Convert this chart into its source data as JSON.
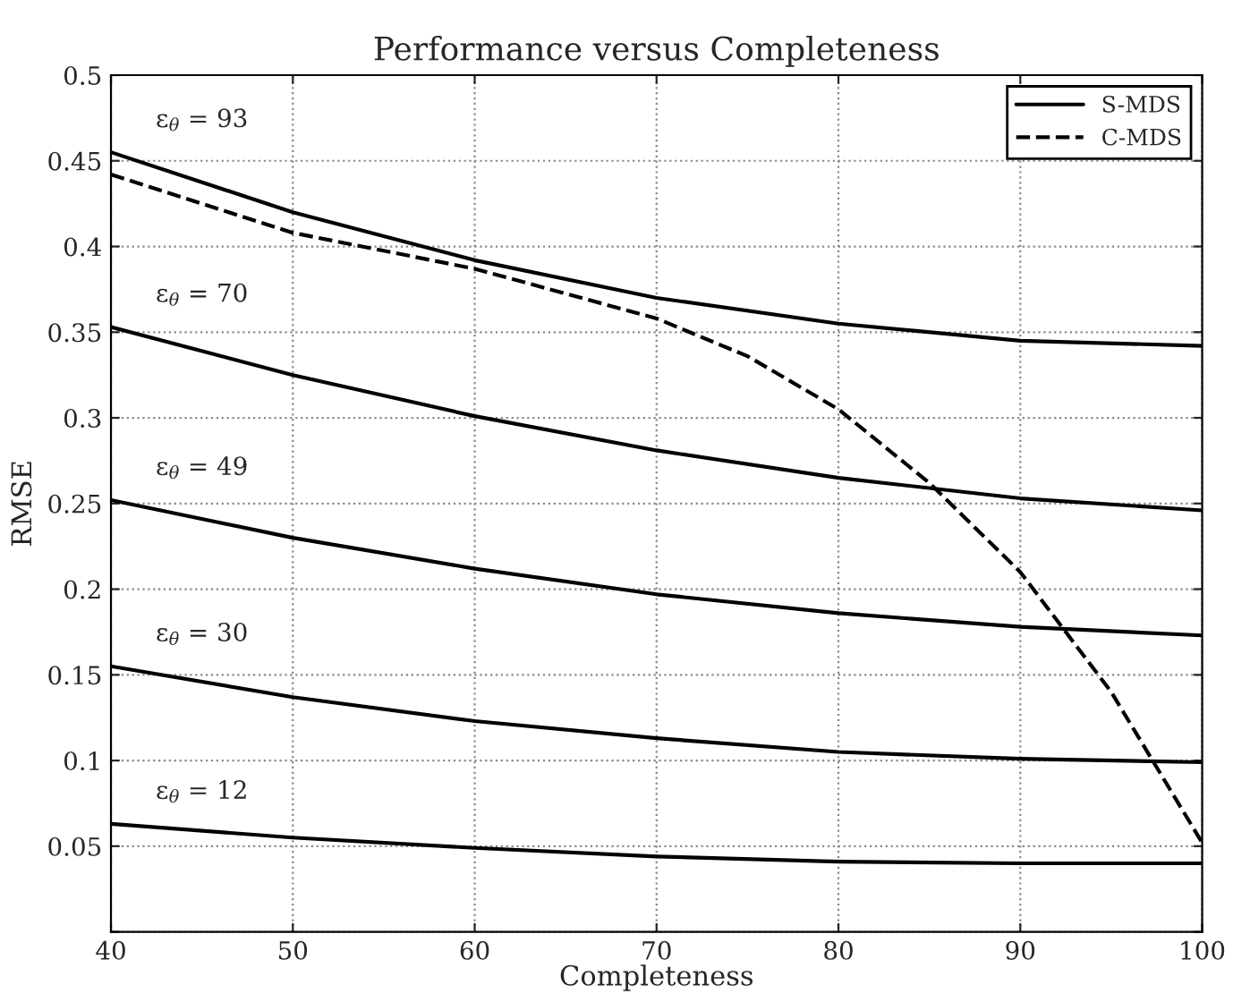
{
  "chart_data": {
    "type": "line",
    "title": "Performance versus Completeness",
    "xlabel": "Completeness",
    "ylabel": "RMSE",
    "x": [
      40,
      50,
      60,
      70,
      80,
      90,
      100
    ],
    "series": [
      {
        "name": "S-MDS",
        "color": "#000000",
        "line_style": "solid",
        "values": [
          0.455,
          0.42,
          0.392,
          0.37,
          0.355,
          0.345,
          0.342
        ]
      },
      {
        "color": "#000000",
        "line_style": "solid",
        "values": [
          0.353,
          0.325,
          0.301,
          0.281,
          0.265,
          0.253,
          0.246
        ]
      },
      {
        "color": "#000000",
        "line_style": "solid",
        "values": [
          0.252,
          0.23,
          0.212,
          0.197,
          0.186,
          0.178,
          0.173
        ]
      },
      {
        "color": "#000000",
        "line_style": "solid",
        "values": [
          0.155,
          0.137,
          0.123,
          0.113,
          0.105,
          0.101,
          0.099
        ]
      },
      {
        "color": "#000000",
        "line_style": "solid",
        "values": [
          0.063,
          0.055,
          0.049,
          0.044,
          0.041,
          0.04,
          0.04
        ]
      },
      {
        "name": "C-MDS",
        "color": "#000000",
        "line_style": "dashed",
        "x": [
          40,
          50,
          60,
          70,
          75,
          80,
          85,
          90,
          95,
          100
        ],
        "values": [
          0.442,
          0.408,
          0.387,
          0.358,
          0.336,
          0.305,
          0.262,
          0.21,
          0.14,
          0.052
        ]
      }
    ],
    "annotations": [
      "ε$_{θ}$ = 93",
      "ε$_{θ}$ = 70",
      "ε$_{θ}$ = 49",
      "ε$_{θ}$ = 30",
      "ε$_{θ}$ = 12"
    ],
    "xlim": [
      40,
      100
    ],
    "xticks": [
      40,
      50,
      60,
      70,
      80,
      90,
      100
    ],
    "ylim": [
      0,
      0.5
    ],
    "yticks": [
      {
        "value": 0,
        "label": null
      },
      0.05,
      0.1,
      0.15,
      0.2,
      0.25,
      0.3,
      0.35,
      0.4,
      0.45,
      0.5
    ],
    "grid": true,
    "legend": "top right",
    "marker": "none"
  }
}
